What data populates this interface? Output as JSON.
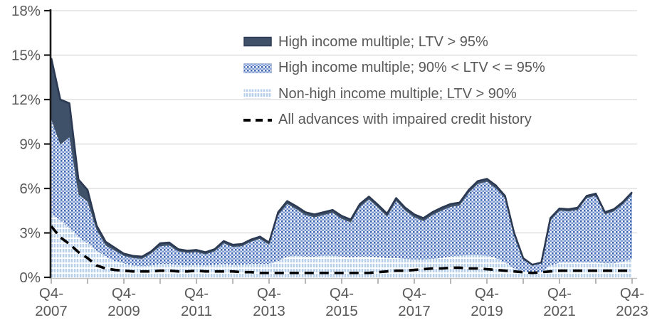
{
  "chart_data": {
    "type": "area",
    "stacked": true,
    "grid": true,
    "legend_position": "top-right",
    "title": "",
    "xlabel": "",
    "ylabel": "",
    "ylim": [
      0,
      18
    ],
    "y_ticks": [
      0,
      3,
      6,
      9,
      12,
      15,
      18
    ],
    "y_tick_labels": [
      "0%",
      "3%",
      "6%",
      "9%",
      "12%",
      "15%",
      "18%"
    ],
    "x_tick_labels": [
      "Q4-2007",
      "Q4-2009",
      "Q4-2011",
      "Q4-2013",
      "Q4-2015",
      "Q4-2017",
      "Q4-2019",
      "Q4-2021",
      "Q4-2023"
    ],
    "categories": [
      "Q4-2007",
      "Q1-2008",
      "Q2-2008",
      "Q3-2008",
      "Q4-2008",
      "Q1-2009",
      "Q2-2009",
      "Q3-2009",
      "Q4-2009",
      "Q1-2010",
      "Q2-2010",
      "Q3-2010",
      "Q4-2010",
      "Q1-2011",
      "Q2-2011",
      "Q3-2011",
      "Q4-2011",
      "Q1-2012",
      "Q2-2012",
      "Q3-2012",
      "Q4-2012",
      "Q1-2013",
      "Q2-2013",
      "Q3-2013",
      "Q4-2013",
      "Q1-2014",
      "Q2-2014",
      "Q3-2014",
      "Q4-2014",
      "Q1-2015",
      "Q2-2015",
      "Q3-2015",
      "Q4-2015",
      "Q1-2016",
      "Q2-2016",
      "Q3-2016",
      "Q4-2016",
      "Q1-2017",
      "Q2-2017",
      "Q3-2017",
      "Q4-2017",
      "Q1-2018",
      "Q2-2018",
      "Q3-2018",
      "Q4-2018",
      "Q1-2019",
      "Q2-2019",
      "Q3-2019",
      "Q4-2019",
      "Q1-2020",
      "Q2-2020",
      "Q3-2020",
      "Q4-2020",
      "Q1-2021",
      "Q2-2021",
      "Q3-2021",
      "Q4-2021",
      "Q1-2022",
      "Q2-2022",
      "Q3-2022",
      "Q4-2022",
      "Q1-2023",
      "Q2-2023",
      "Q3-2023",
      "Q4-2023"
    ],
    "series": [
      {
        "name": "High income multiple; LTV > 95%",
        "kind": "area-stacked-top",
        "fill": "#3F5169",
        "edge": "#2B3A52",
        "values": [
          4.15,
          3.05,
          2.3,
          1.0,
          0.8,
          0.3,
          0.25,
          0.2,
          0.15,
          0.15,
          0.15,
          0.15,
          0.2,
          0.2,
          0.15,
          0.15,
          0.15,
          0.15,
          0.15,
          0.15,
          0.15,
          0.15,
          0.15,
          0.15,
          0.15,
          0.2,
          0.2,
          0.2,
          0.2,
          0.2,
          0.2,
          0.2,
          0.2,
          0.2,
          0.2,
          0.2,
          0.2,
          0.2,
          0.2,
          0.2,
          0.2,
          0.2,
          0.2,
          0.2,
          0.2,
          0.2,
          0.2,
          0.2,
          0.2,
          0.2,
          0.15,
          0.1,
          0.1,
          0.05,
          0.05,
          0.15,
          0.15,
          0.15,
          0.15,
          0.15,
          0.15,
          0.15,
          0.15,
          0.15,
          0.15
        ]
      },
      {
        "name": "High income multiple; 90% < LTV < = 95%",
        "kind": "area-stacked-middle",
        "pattern": "blue-diagonal-checker",
        "pattern_colors": [
          "#3E66B2",
          "#7A97CF",
          "#CDDAF0",
          "#FFFFFF"
        ],
        "values": [
          6.35,
          5.1,
          6.15,
          2.9,
          2.8,
          1.4,
          0.75,
          0.7,
          0.5,
          0.5,
          0.5,
          0.8,
          1.2,
          1.25,
          0.9,
          0.85,
          0.85,
          0.75,
          0.9,
          1.4,
          1.2,
          1.25,
          1.5,
          1.7,
          1.3,
          3.1,
          3.55,
          3.15,
          2.8,
          2.65,
          2.75,
          2.9,
          2.55,
          2.35,
          3.35,
          3.85,
          3.35,
          2.8,
          3.85,
          3.25,
          2.85,
          2.6,
          2.95,
          3.2,
          3.35,
          3.4,
          4.2,
          4.8,
          5.0,
          4.7,
          4.35,
          2.3,
          0.8,
          0.5,
          0.6,
          3.05,
          3.5,
          3.45,
          3.55,
          4.35,
          4.5,
          3.3,
          3.5,
          3.9,
          4.35
        ]
      },
      {
        "name": "Non-high income multiple; LTV > 90%",
        "kind": "area-stacked-bottom",
        "pattern": "light-blue-vertical-lattice",
        "pattern_colors": [
          "#B9D0EA",
          "#E4EDF8",
          "#FFFFFF"
        ],
        "values": [
          4.3,
          3.85,
          3.3,
          2.7,
          2.3,
          1.8,
          1.4,
          1.1,
          0.95,
          0.8,
          0.75,
          0.8,
          0.9,
          0.9,
          0.85,
          0.8,
          0.85,
          0.8,
          0.85,
          0.9,
          0.85,
          0.85,
          0.9,
          0.9,
          0.9,
          1.1,
          1.4,
          1.45,
          1.4,
          1.4,
          1.45,
          1.45,
          1.4,
          1.35,
          1.4,
          1.4,
          1.35,
          1.3,
          1.3,
          1.25,
          1.2,
          1.2,
          1.25,
          1.3,
          1.4,
          1.45,
          1.5,
          1.5,
          1.45,
          1.3,
          1.0,
          0.6,
          0.4,
          0.3,
          0.35,
          0.8,
          1.0,
          1.0,
          1.0,
          1.0,
          1.0,
          0.95,
          0.95,
          1.05,
          1.25
        ]
      },
      {
        "name": "All advances with impaired credit history",
        "kind": "dashed-line",
        "stroke": "#000000",
        "values": [
          3.45,
          2.7,
          2.25,
          1.7,
          1.3,
          0.8,
          0.6,
          0.5,
          0.45,
          0.4,
          0.4,
          0.4,
          0.45,
          0.45,
          0.4,
          0.4,
          0.45,
          0.4,
          0.4,
          0.4,
          0.4,
          0.35,
          0.35,
          0.3,
          0.3,
          0.3,
          0.3,
          0.3,
          0.3,
          0.3,
          0.3,
          0.3,
          0.3,
          0.3,
          0.3,
          0.3,
          0.35,
          0.4,
          0.45,
          0.45,
          0.5,
          0.55,
          0.6,
          0.6,
          0.65,
          0.65,
          0.6,
          0.6,
          0.55,
          0.5,
          0.45,
          0.4,
          0.35,
          0.3,
          0.35,
          0.4,
          0.45,
          0.45,
          0.45,
          0.45,
          0.45,
          0.45,
          0.45,
          0.45,
          0.45
        ]
      }
    ],
    "colors": {
      "gridline": "#D9D9D9",
      "y_axis": "#1A1A1A",
      "x_axis": "#C2C2C2",
      "x_tick": "#A6A6A6",
      "tick_label": "#595959",
      "navy_fill": "#3F5169",
      "navy_edge": "#2B3A52",
      "hatch_blue": "#3E66B2",
      "light_blue": "#B9D0EA"
    }
  }
}
